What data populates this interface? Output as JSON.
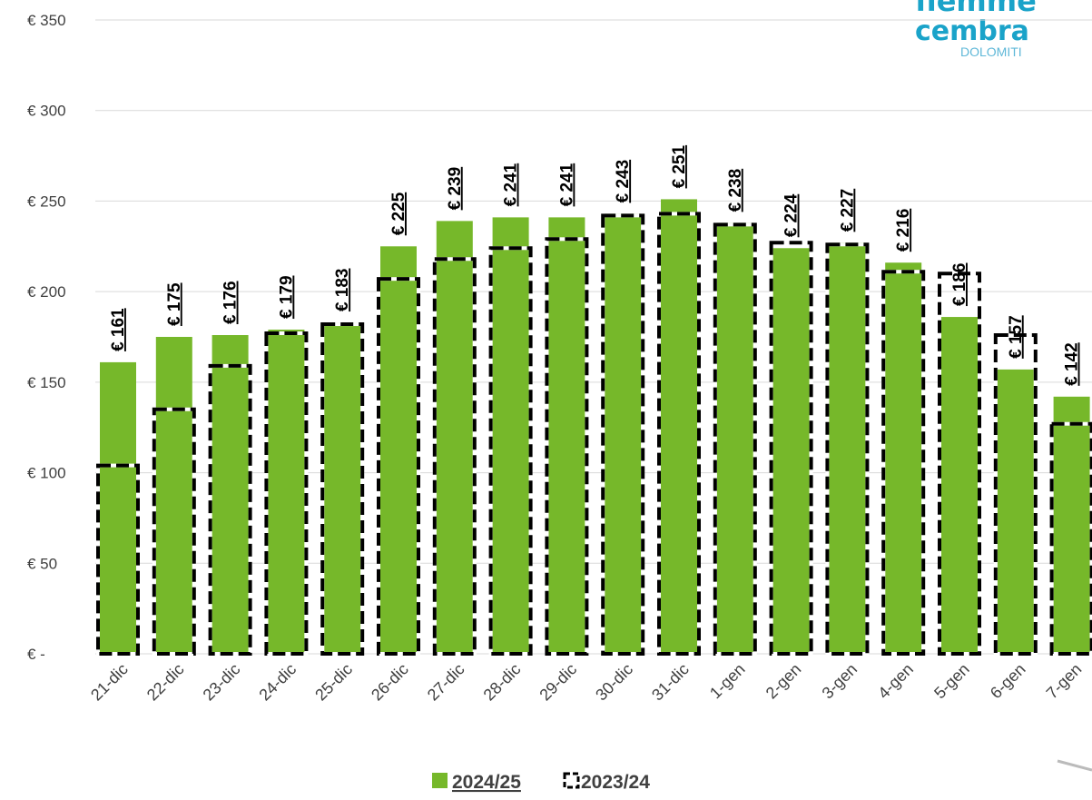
{
  "chart_data": {
    "type": "bar",
    "categories": [
      "21-dic",
      "22-dic",
      "23-dic",
      "24-dic",
      "25-dic",
      "26-dic",
      "27-dic",
      "28-dic",
      "29-dic",
      "30-dic",
      "31-dic",
      "1-gen",
      "2-gen",
      "3-gen",
      "4-gen",
      "5-gen",
      "6-gen",
      "7-gen"
    ],
    "series": [
      {
        "name": "2024/25",
        "color": "#76b82a",
        "values": [
          161,
          175,
          176,
          179,
          183,
          225,
          239,
          241,
          241,
          243,
          251,
          238,
          224,
          227,
          216,
          186,
          157,
          142
        ],
        "value_labels": [
          "€ 161",
          "€ 175",
          "€ 176",
          "€ 179",
          "€ 183",
          "€ 225",
          "€ 239",
          "€ 241",
          "€ 241",
          "€ 243",
          "€ 251",
          "€ 238",
          "€ 224",
          "€ 227",
          "€ 216",
          "€ 186",
          "€ 157",
          "€ 142"
        ]
      },
      {
        "name": "2023/24",
        "color": "#000000",
        "values": [
          104,
          135,
          159,
          177,
          182,
          207,
          218,
          224,
          229,
          242,
          243,
          237,
          227,
          226,
          211,
          210,
          176,
          127
        ]
      }
    ],
    "ylim": [
      0,
      350
    ],
    "yticks": [
      {
        "value": 0,
        "label": "€ -"
      },
      {
        "value": 50,
        "label": "€ 50"
      },
      {
        "value": 100,
        "label": "€ 100"
      },
      {
        "value": 150,
        "label": "€ 150"
      },
      {
        "value": 200,
        "label": "€ 200"
      },
      {
        "value": 250,
        "label": "€ 250"
      },
      {
        "value": 300,
        "label": "€ 300"
      },
      {
        "value": 350,
        "label": "€ 350"
      }
    ],
    "grid": true
  },
  "logo": {
    "line1": "fiemme",
    "line2": "cembra",
    "line3": "DOLOMITI"
  }
}
